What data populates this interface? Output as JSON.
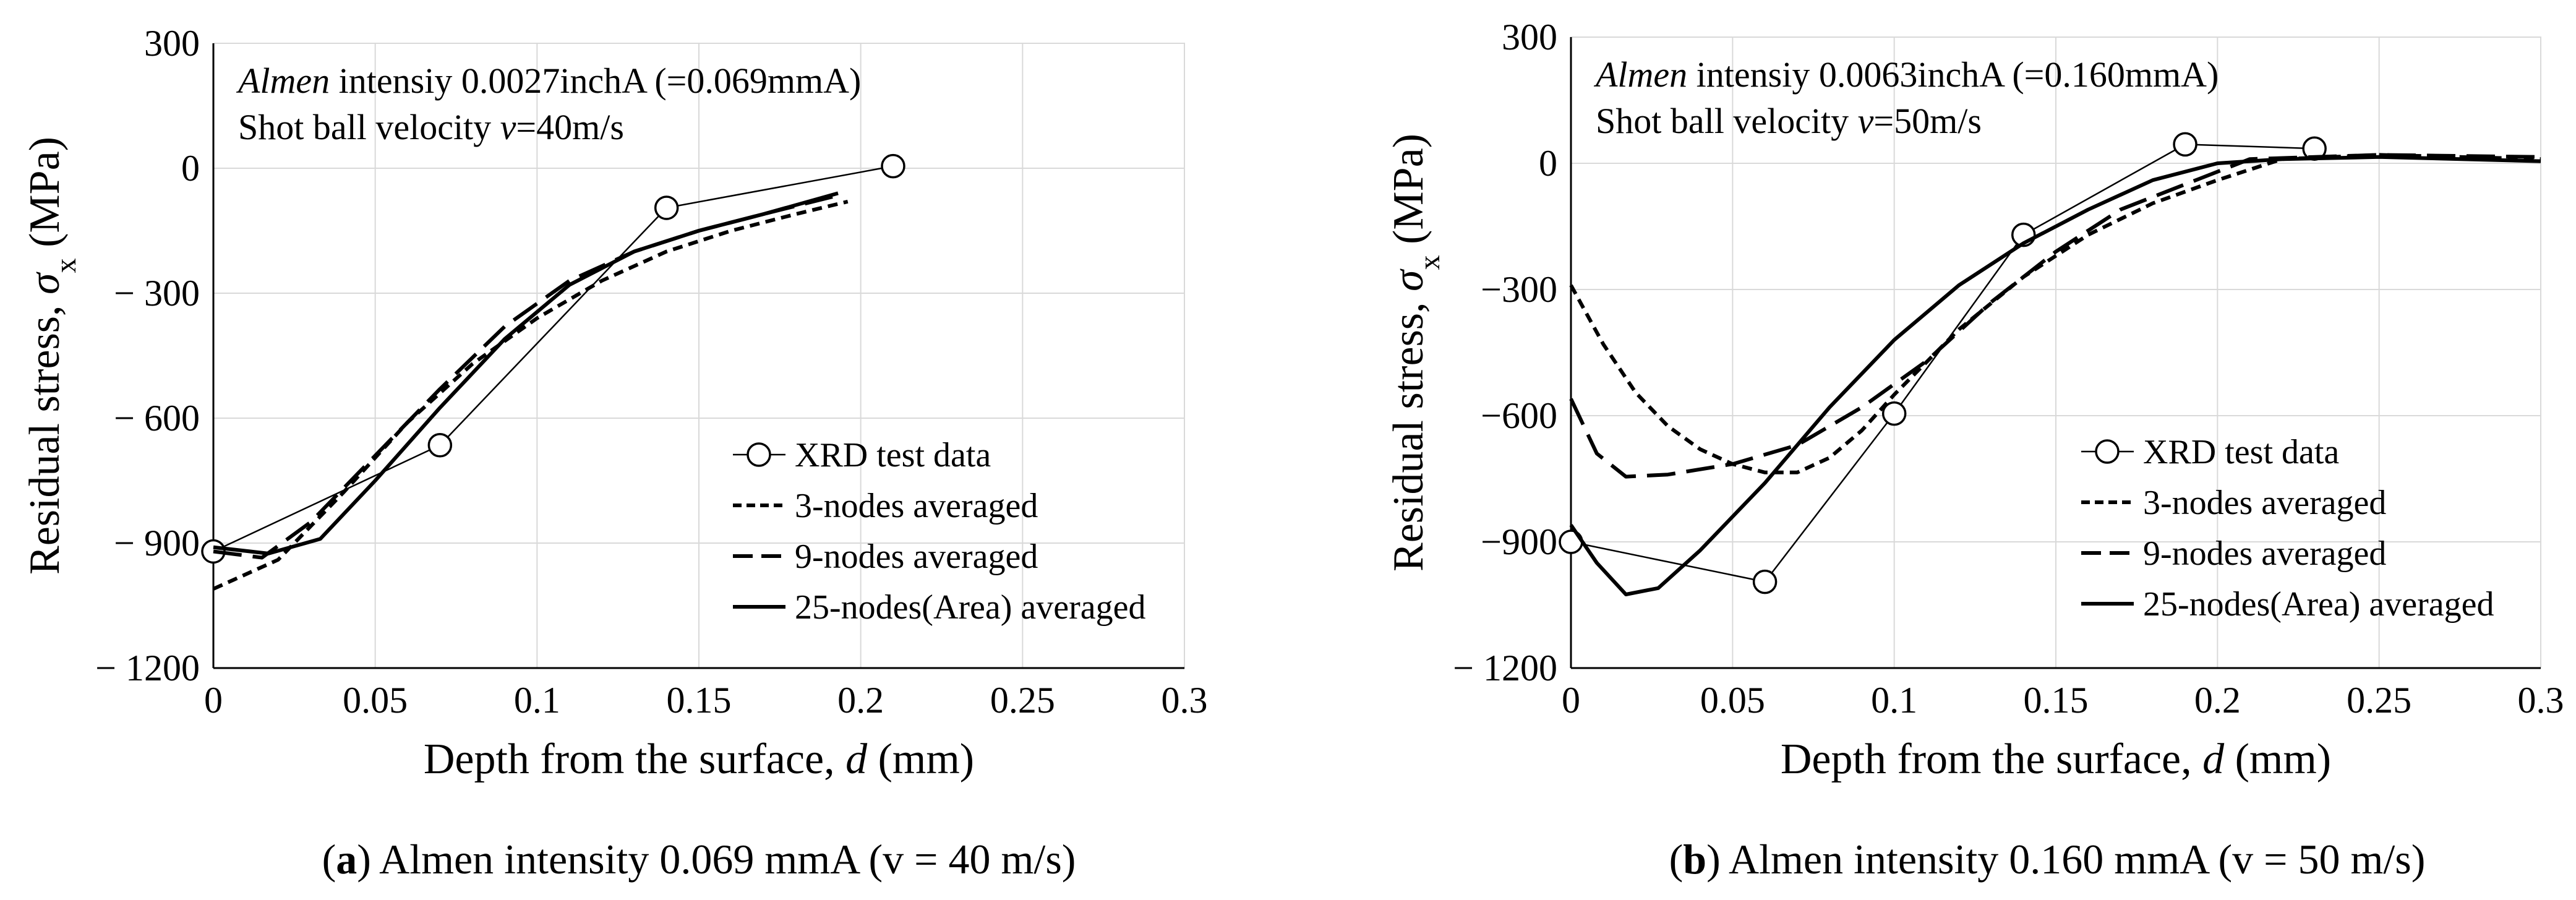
{
  "chart_data": [
    {
      "type": "line",
      "panel_label": "a",
      "caption": "Almen intensity 0.069 mmA (v = 40 m/s)",
      "annotation_line1_italic": "Almen",
      "annotation_line1_rest": " intensiy 0.0027inchA (=0.069mmA)",
      "annotation_line2_pre": "Shot ball velocity ",
      "annotation_line2_var": "v",
      "annotation_line2_post": "=40m/s",
      "xlabel_pre": "Depth from the surface, ",
      "xlabel_var": "d",
      "xlabel_post": " (mm)",
      "ylabel_pre": "Residual stress, ",
      "ylabel_var": "σ",
      "ylabel_sub": "x",
      "ylabel_post": " (MPa)",
      "xlim": [
        0,
        0.3
      ],
      "ylim": [
        -1200,
        300
      ],
      "xticks": [
        0,
        0.05,
        0.1,
        0.15,
        0.2,
        0.25,
        0.3
      ],
      "xtick_labels": [
        "0",
        "0.05",
        "0.1",
        "0.15",
        "0.2",
        "0.25",
        "0.3"
      ],
      "yticks": [
        300,
        0,
        -300,
        -600,
        -900,
        -1200
      ],
      "ytick_labels": [
        "300",
        "0",
        "− 300",
        "− 600",
        "− 900",
        "− 1200"
      ],
      "grid": true,
      "legend_position": "bottom-right",
      "series": [
        {
          "name": "XRD test data",
          "style": "circle-marker",
          "x": [
            0,
            0.07,
            0.14,
            0.21
          ],
          "y": [
            -920,
            -665,
            -95,
            5
          ]
        },
        {
          "name": "3-nodes averaged",
          "style": "short-dash",
          "x": [
            0,
            0.02,
            0.04,
            0.06,
            0.08,
            0.1,
            0.12,
            0.14,
            0.16,
            0.18,
            0.196
          ],
          "y": [
            -1010,
            -940,
            -780,
            -610,
            -470,
            -360,
            -270,
            -200,
            -150,
            -110,
            -80
          ]
        },
        {
          "name": "9-nodes averaged",
          "style": "long-dash",
          "x": [
            0,
            0.015,
            0.03,
            0.05,
            0.07,
            0.09,
            0.11,
            0.13,
            0.15,
            0.17,
            0.193
          ],
          "y": [
            -920,
            -935,
            -850,
            -690,
            -530,
            -380,
            -270,
            -200,
            -150,
            -110,
            -65
          ]
        },
        {
          "name": "25-nodes(Area) averaged",
          "style": "solid",
          "x": [
            0,
            0.017,
            0.033,
            0.05,
            0.07,
            0.09,
            0.11,
            0.13,
            0.15,
            0.17,
            0.193
          ],
          "y": [
            -910,
            -925,
            -890,
            -750,
            -575,
            -410,
            -280,
            -200,
            -150,
            -110,
            -60
          ]
        }
      ]
    },
    {
      "type": "line",
      "panel_label": "b",
      "caption": "Almen intensity 0.160 mmA (v = 50 m/s)",
      "annotation_line1_italic": "Almen",
      "annotation_line1_rest": " intensiy 0.0063inchA (=0.160mmA)",
      "annotation_line2_pre": "Shot ball velocity ",
      "annotation_line2_var": "v",
      "annotation_line2_post": "=50m/s",
      "xlabel_pre": "Depth from the surface, ",
      "xlabel_var": "d",
      "xlabel_post": " (mm)",
      "ylabel_pre": "Residual stress, ",
      "ylabel_var": "σ",
      "ylabel_sub": "x",
      "ylabel_post": " (MPa)",
      "xlim": [
        0,
        0.3
      ],
      "ylim": [
        -1200,
        300
      ],
      "xticks": [
        0,
        0.05,
        0.1,
        0.15,
        0.2,
        0.25,
        0.3
      ],
      "xtick_labels": [
        "0",
        "0.05",
        "0.1",
        "0.15",
        "0.2",
        "0.25",
        "0.3"
      ],
      "yticks": [
        300,
        0,
        -300,
        -600,
        -900,
        -1200
      ],
      "ytick_labels": [
        "300",
        "0",
        "−300",
        "−600",
        "−900",
        "− 1200"
      ],
      "grid": true,
      "legend_position": "bottom-right",
      "series": [
        {
          "name": "XRD test data",
          "style": "circle-marker",
          "x": [
            0,
            0.06,
            0.1,
            0.14,
            0.19,
            0.23
          ],
          "y": [
            -900,
            -995,
            -595,
            -170,
            45,
            35
          ]
        },
        {
          "name": "3-nodes averaged",
          "style": "short-dash",
          "x": [
            0,
            0.01,
            0.02,
            0.03,
            0.04,
            0.05,
            0.06,
            0.07,
            0.08,
            0.09,
            0.1,
            0.12,
            0.14,
            0.16,
            0.18,
            0.2,
            0.22,
            0.25,
            0.3
          ],
          "y": [
            -290,
            -430,
            -545,
            -625,
            -680,
            -715,
            -735,
            -735,
            -700,
            -635,
            -550,
            -395,
            -270,
            -170,
            -95,
            -40,
            10,
            20,
            10
          ]
        },
        {
          "name": "9-nodes averaged",
          "style": "long-dash",
          "x": [
            0,
            0.008,
            0.017,
            0.03,
            0.05,
            0.07,
            0.09,
            0.11,
            0.13,
            0.15,
            0.17,
            0.19,
            0.21,
            0.25,
            0.3
          ],
          "y": [
            -560,
            -690,
            -745,
            -740,
            -715,
            -670,
            -580,
            -470,
            -330,
            -210,
            -110,
            -50,
            10,
            20,
            15
          ]
        },
        {
          "name": "25-nodes(Area) averaged",
          "style": "solid",
          "x": [
            0,
            0.008,
            0.017,
            0.027,
            0.04,
            0.06,
            0.08,
            0.1,
            0.12,
            0.14,
            0.16,
            0.18,
            0.2,
            0.22,
            0.25,
            0.3
          ],
          "y": [
            -860,
            -950,
            -1025,
            -1010,
            -920,
            -760,
            -580,
            -420,
            -290,
            -190,
            -110,
            -40,
            0,
            10,
            15,
            5
          ]
        }
      ]
    }
  ]
}
